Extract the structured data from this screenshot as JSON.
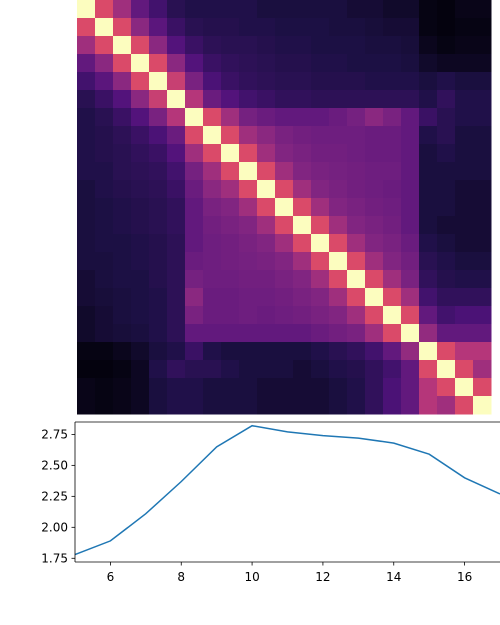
{
  "figure": {
    "background": "#ffffff",
    "colormap": "magma"
  },
  "chart_data": [
    {
      "type": "heatmap",
      "title": "",
      "colormap": "magma",
      "vmin": 0.0,
      "vmax": 1.0,
      "xticks": [],
      "yticks": [],
      "matrix": [
        [
          1.0,
          0.6,
          0.45,
          0.3,
          0.22,
          0.16,
          0.14,
          0.14,
          0.14,
          0.14,
          0.12,
          0.12,
          0.12,
          0.12,
          0.12,
          0.1,
          0.1,
          0.08,
          0.08,
          0.03,
          0.02,
          0.04,
          0.04
        ],
        [
          0.6,
          1.0,
          0.6,
          0.4,
          0.28,
          0.2,
          0.16,
          0.15,
          0.15,
          0.14,
          0.14,
          0.13,
          0.13,
          0.13,
          0.12,
          0.12,
          0.11,
          0.1,
          0.1,
          0.03,
          0.02,
          0.03,
          0.03
        ],
        [
          0.45,
          0.6,
          1.0,
          0.6,
          0.4,
          0.26,
          0.2,
          0.17,
          0.16,
          0.16,
          0.15,
          0.14,
          0.14,
          0.13,
          0.13,
          0.13,
          0.12,
          0.12,
          0.11,
          0.05,
          0.03,
          0.04,
          0.04
        ],
        [
          0.3,
          0.4,
          0.6,
          1.0,
          0.6,
          0.4,
          0.26,
          0.2,
          0.18,
          0.17,
          0.16,
          0.15,
          0.15,
          0.14,
          0.14,
          0.13,
          0.13,
          0.13,
          0.12,
          0.08,
          0.06,
          0.06,
          0.06
        ],
        [
          0.22,
          0.28,
          0.4,
          0.6,
          1.0,
          0.55,
          0.36,
          0.24,
          0.2,
          0.18,
          0.17,
          0.16,
          0.16,
          0.15,
          0.15,
          0.15,
          0.14,
          0.14,
          0.14,
          0.12,
          0.14,
          0.12,
          0.12
        ],
        [
          0.16,
          0.2,
          0.26,
          0.4,
          0.55,
          1.0,
          0.5,
          0.32,
          0.26,
          0.22,
          0.2,
          0.18,
          0.18,
          0.17,
          0.17,
          0.17,
          0.17,
          0.17,
          0.17,
          0.14,
          0.18,
          0.14,
          0.14
        ],
        [
          0.14,
          0.16,
          0.2,
          0.26,
          0.36,
          0.5,
          1.0,
          0.6,
          0.45,
          0.35,
          0.32,
          0.3,
          0.3,
          0.3,
          0.32,
          0.35,
          0.4,
          0.36,
          0.3,
          0.2,
          0.16,
          0.14,
          0.14
        ],
        [
          0.14,
          0.15,
          0.17,
          0.2,
          0.24,
          0.32,
          0.6,
          1.0,
          0.6,
          0.45,
          0.4,
          0.36,
          0.34,
          0.33,
          0.33,
          0.33,
          0.32,
          0.32,
          0.3,
          0.14,
          0.16,
          0.12,
          0.12
        ],
        [
          0.14,
          0.15,
          0.16,
          0.18,
          0.2,
          0.26,
          0.45,
          0.6,
          1.0,
          0.6,
          0.45,
          0.38,
          0.36,
          0.34,
          0.34,
          0.33,
          0.32,
          0.32,
          0.3,
          0.12,
          0.14,
          0.12,
          0.12
        ],
        [
          0.14,
          0.14,
          0.16,
          0.17,
          0.18,
          0.22,
          0.35,
          0.45,
          0.6,
          1.0,
          0.6,
          0.45,
          0.38,
          0.36,
          0.35,
          0.34,
          0.33,
          0.33,
          0.3,
          0.12,
          0.12,
          0.12,
          0.12
        ],
        [
          0.12,
          0.14,
          0.15,
          0.16,
          0.17,
          0.2,
          0.32,
          0.4,
          0.45,
          0.6,
          1.0,
          0.6,
          0.45,
          0.38,
          0.36,
          0.34,
          0.33,
          0.32,
          0.3,
          0.12,
          0.12,
          0.1,
          0.1
        ],
        [
          0.12,
          0.13,
          0.14,
          0.15,
          0.16,
          0.18,
          0.3,
          0.36,
          0.38,
          0.45,
          0.6,
          1.0,
          0.6,
          0.45,
          0.38,
          0.36,
          0.34,
          0.33,
          0.3,
          0.12,
          0.12,
          0.1,
          0.1
        ],
        [
          0.12,
          0.13,
          0.14,
          0.15,
          0.16,
          0.18,
          0.3,
          0.34,
          0.36,
          0.38,
          0.45,
          0.6,
          1.0,
          0.6,
          0.45,
          0.38,
          0.36,
          0.34,
          0.3,
          0.12,
          0.1,
          0.1,
          0.1
        ],
        [
          0.12,
          0.13,
          0.13,
          0.14,
          0.15,
          0.17,
          0.3,
          0.33,
          0.34,
          0.36,
          0.38,
          0.45,
          0.6,
          1.0,
          0.6,
          0.45,
          0.38,
          0.36,
          0.32,
          0.14,
          0.12,
          0.1,
          0.1
        ],
        [
          0.12,
          0.12,
          0.13,
          0.14,
          0.15,
          0.17,
          0.32,
          0.33,
          0.34,
          0.35,
          0.36,
          0.38,
          0.45,
          0.6,
          1.0,
          0.6,
          0.45,
          0.38,
          0.34,
          0.16,
          0.14,
          0.12,
          0.12
        ],
        [
          0.1,
          0.12,
          0.13,
          0.13,
          0.15,
          0.17,
          0.35,
          0.33,
          0.33,
          0.34,
          0.34,
          0.36,
          0.38,
          0.45,
          0.6,
          1.0,
          0.6,
          0.45,
          0.36,
          0.18,
          0.15,
          0.14,
          0.14
        ],
        [
          0.1,
          0.11,
          0.12,
          0.13,
          0.14,
          0.17,
          0.4,
          0.32,
          0.32,
          0.33,
          0.33,
          0.34,
          0.36,
          0.38,
          0.45,
          0.6,
          1.0,
          0.6,
          0.45,
          0.22,
          0.18,
          0.18,
          0.18
        ],
        [
          0.08,
          0.1,
          0.12,
          0.13,
          0.14,
          0.17,
          0.36,
          0.32,
          0.32,
          0.33,
          0.32,
          0.33,
          0.34,
          0.36,
          0.38,
          0.45,
          0.6,
          1.0,
          0.6,
          0.3,
          0.22,
          0.24,
          0.24
        ],
        [
          0.08,
          0.1,
          0.11,
          0.12,
          0.14,
          0.17,
          0.3,
          0.3,
          0.3,
          0.3,
          0.3,
          0.3,
          0.3,
          0.32,
          0.34,
          0.36,
          0.45,
          0.6,
          1.0,
          0.42,
          0.3,
          0.3,
          0.3
        ],
        [
          0.03,
          0.03,
          0.05,
          0.08,
          0.12,
          0.14,
          0.2,
          0.14,
          0.12,
          0.12,
          0.12,
          0.12,
          0.12,
          0.14,
          0.16,
          0.18,
          0.22,
          0.3,
          0.42,
          1.0,
          0.6,
          0.5,
          0.5
        ],
        [
          0.02,
          0.02,
          0.03,
          0.06,
          0.14,
          0.18,
          0.16,
          0.16,
          0.14,
          0.12,
          0.12,
          0.12,
          0.1,
          0.12,
          0.14,
          0.15,
          0.18,
          0.22,
          0.3,
          0.6,
          1.0,
          0.6,
          0.45
        ],
        [
          0.04,
          0.03,
          0.04,
          0.06,
          0.12,
          0.14,
          0.14,
          0.12,
          0.12,
          0.12,
          0.1,
          0.1,
          0.1,
          0.1,
          0.12,
          0.14,
          0.18,
          0.24,
          0.3,
          0.5,
          0.6,
          1.0,
          0.6
        ],
        [
          0.04,
          0.03,
          0.04,
          0.06,
          0.12,
          0.14,
          0.14,
          0.12,
          0.12,
          0.12,
          0.1,
          0.1,
          0.1,
          0.1,
          0.12,
          0.14,
          0.18,
          0.24,
          0.3,
          0.5,
          0.45,
          0.6,
          1.0
        ]
      ]
    },
    {
      "type": "line",
      "title": "",
      "xlabel": "",
      "ylabel": "",
      "xlim": [
        5,
        17
      ],
      "ylim": [
        1.72,
        2.85
      ],
      "xticks": [
        6,
        8,
        10,
        12,
        14,
        16
      ],
      "yticks": [
        1.75,
        2.0,
        2.25,
        2.5,
        2.75
      ],
      "xtick_labels": [
        "6",
        "8",
        "10",
        "12",
        "14",
        "16"
      ],
      "ytick_labels": [
        "1.75",
        "2.00",
        "2.25",
        "2.50",
        "2.75"
      ],
      "grid": false,
      "line_color": "#1f77b4",
      "series": [
        {
          "x": [
            5,
            6,
            7,
            8,
            9,
            10,
            11,
            12,
            13,
            14,
            15,
            16,
            17
          ],
          "y": [
            1.78,
            1.89,
            2.11,
            2.37,
            2.65,
            2.82,
            2.77,
            2.74,
            2.72,
            2.68,
            2.59,
            2.4,
            2.27
          ]
        }
      ]
    }
  ]
}
